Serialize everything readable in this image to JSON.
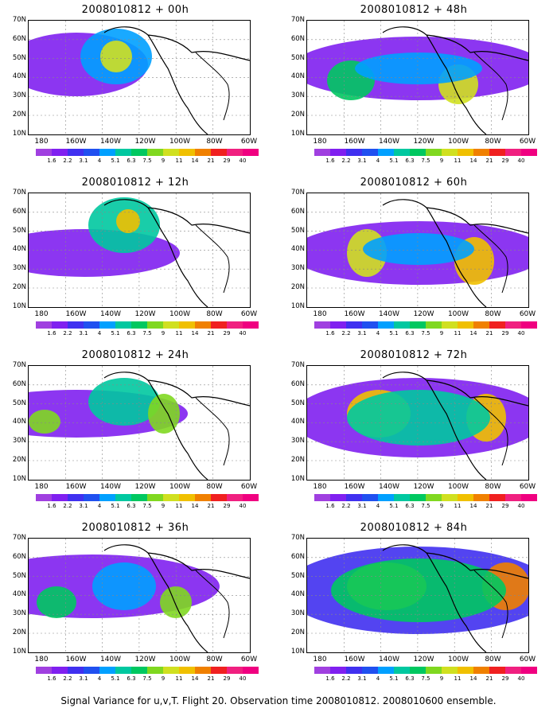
{
  "caption": "Signal Variance for u,v,T. Flight 20. Observation time 2008010812. 2008010600 ensemble.",
  "lat_labels": [
    "70N",
    "60N",
    "50N",
    "40N",
    "30N",
    "20N",
    "10N"
  ],
  "lon_labels": [
    "180",
    "160W",
    "140W",
    "120W",
    "100W",
    "80W",
    "60W"
  ],
  "colorbar_labels": [
    "1.6",
    "2.2",
    "3.1",
    "4",
    "5.1",
    "6.3",
    "7.5",
    "9",
    "11",
    "14",
    "21",
    "29",
    "40"
  ],
  "colorbar_colors": [
    "#a040e0",
    "#8020f0",
    "#4030f0",
    "#2050f0",
    "#00a0ff",
    "#00c8a0",
    "#00c860",
    "#80d820",
    "#d0e020",
    "#f0c000",
    "#f08000",
    "#f02020",
    "#f02080",
    "#f00080"
  ],
  "panels": [
    {
      "title": "2008010812 + 00h"
    },
    {
      "title": "2008010812 + 12h"
    },
    {
      "title": "2008010812 + 24h"
    },
    {
      "title": "2008010812 + 36h"
    },
    {
      "title": "2008010812 + 48h"
    },
    {
      "title": "2008010812 + 60h"
    },
    {
      "title": "2008010812 + 72h"
    },
    {
      "title": "2008010812 + 84h"
    }
  ]
}
